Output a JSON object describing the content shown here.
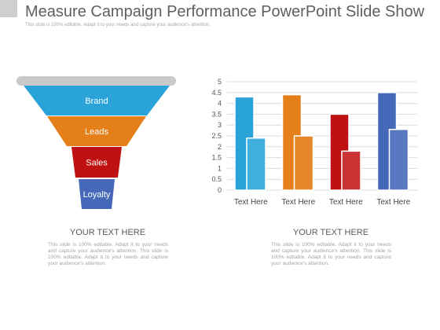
{
  "slide": {
    "title": "Measure Campaign Performance PowerPoint Slide Show",
    "subtitle": "This slide is 100% editable. Adapt it to your needs and capture your audience's attention."
  },
  "funnel": {
    "stages": [
      {
        "label": "Brand",
        "color": "#29a3d8"
      },
      {
        "label": "Leads",
        "color": "#e47f19"
      },
      {
        "label": "Sales",
        "color": "#bf1111"
      },
      {
        "label": "Loyalty",
        "color": "#4568b9"
      }
    ],
    "rim_color": "#c9c9c9"
  },
  "chart_data": {
    "type": "bar",
    "categories": [
      "Text Here",
      "Text Here",
      "Text Here",
      "Text Here"
    ],
    "series": [
      {
        "values": [
          4.3,
          4.4,
          3.5,
          4.5
        ]
      },
      {
        "values": [
          2.4,
          2.5,
          1.8,
          2.8
        ]
      }
    ],
    "colors": [
      [
        "#29a3d8",
        "#3fb0dd"
      ],
      [
        "#e47f19",
        "#e7862a"
      ],
      [
        "#bf1111",
        "#c93333"
      ],
      [
        "#4568b9",
        "#5a78c2"
      ]
    ],
    "yticks": [
      "0",
      "0.5",
      "1",
      "1.5",
      "2",
      "2.5",
      "3",
      "3.5",
      "4",
      "4.5",
      "5"
    ],
    "ylim": [
      0,
      5
    ],
    "grid": true
  },
  "left_text": {
    "heading": "YOUR TEXT HERE",
    "body": "This slide is 100% editable. Adapt it to your needs and capture your audience's attention. This slide is 100% editable. Adapt it to your needs and capture your audience's attention."
  },
  "right_text": {
    "heading": "YOUR TEXT HERE",
    "body": "This slide is 100% editable. Adapt it to your needs and capture your audience's attention. This slide is 100% editable. Adapt it to your needs and capture your audience's attention."
  }
}
